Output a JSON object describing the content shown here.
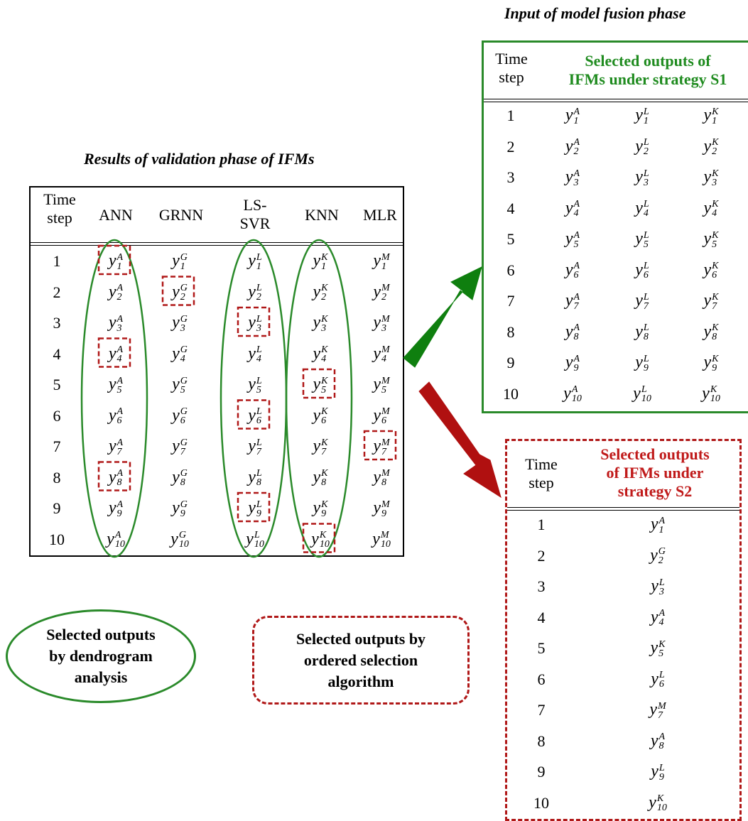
{
  "titles": {
    "fusion": "Input of model fusion phase",
    "validation": "Results of validation phase of IFMs"
  },
  "left_table": {
    "headers": [
      "Time step",
      "ANN",
      "GRNN",
      "LS-SVR",
      "KNN",
      "MLR"
    ],
    "header_lines": {
      "time_step": [
        "Time",
        "step"
      ],
      "ls_svr": [
        "LS-",
        "SVR"
      ]
    },
    "steps": [
      "1",
      "2",
      "3",
      "4",
      "5",
      "6",
      "7",
      "8",
      "9",
      "10"
    ],
    "model_letters": [
      "A",
      "G",
      "L",
      "K",
      "M"
    ],
    "symbol_base": "y"
  },
  "s1_table": {
    "header_time": [
      "Time",
      "step"
    ],
    "header_title": [
      "Selected outputs of",
      "IFMs under strategy S1"
    ],
    "letters": [
      "A",
      "L",
      "K"
    ],
    "steps": [
      "1",
      "2",
      "3",
      "4",
      "5",
      "6",
      "7",
      "8",
      "9",
      "10"
    ]
  },
  "s2_table": {
    "header_time": [
      "Time",
      "step"
    ],
    "header_title": [
      "Selected outputs",
      "of IFMs under",
      "strategy S2"
    ],
    "steps": [
      "1",
      "2",
      "3",
      "4",
      "5",
      "6",
      "7",
      "8",
      "9",
      "10"
    ],
    "letters": [
      "A",
      "G",
      "L",
      "A",
      "K",
      "L",
      "M",
      "A",
      "L",
      "K"
    ]
  },
  "selection": {
    "dendrogram_columns": [
      "ANN",
      "LS-SVR",
      "KNN"
    ],
    "ordered_selection": [
      {
        "step": "1",
        "model": "ANN"
      },
      {
        "step": "2",
        "model": "GRNN"
      },
      {
        "step": "3",
        "model": "LS-SVR"
      },
      {
        "step": "4",
        "model": "ANN"
      },
      {
        "step": "5",
        "model": "KNN"
      },
      {
        "step": "6",
        "model": "LS-SVR"
      },
      {
        "step": "7",
        "model": "MLR"
      },
      {
        "step": "8",
        "model": "ANN"
      },
      {
        "step": "9",
        "model": "LS-SVR"
      },
      {
        "step": "10",
        "model": "KNN"
      }
    ]
  },
  "legend": {
    "dendrogram": [
      "Selected outputs",
      "by dendrogram",
      "analysis"
    ],
    "ordered": [
      "Selected outputs by",
      "ordered selection",
      "algorithm"
    ]
  },
  "colors": {
    "green": "#2a8a2a",
    "green_text": "#1f8b1f",
    "red": "#b01818",
    "red_text": "#c01a1a"
  }
}
